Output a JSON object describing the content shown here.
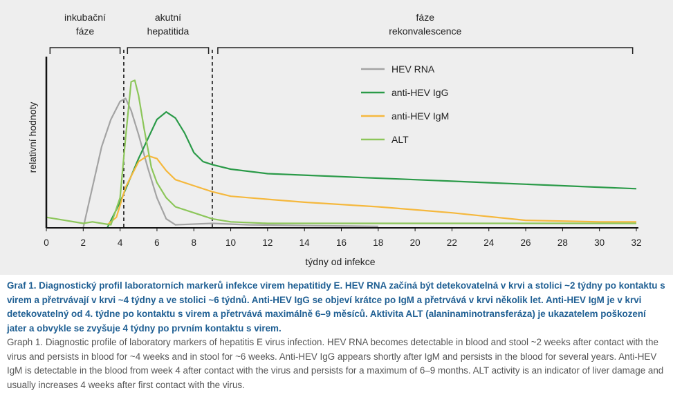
{
  "chart_data": {
    "type": "line",
    "xlabel": "týdny od infekce",
    "ylabel": "relativní hodnoty",
    "xlim": [
      0,
      32
    ],
    "ylim": [
      0,
      1
    ],
    "x_ticks": [
      0,
      2,
      4,
      6,
      8,
      10,
      12,
      14,
      16,
      18,
      20,
      22,
      24,
      26,
      28,
      30,
      32
    ],
    "phases": [
      {
        "label_lines": [
          "inkubační",
          "fáze"
        ],
        "start": 0.2,
        "end": 4.0
      },
      {
        "label_lines": [
          "akutní",
          "hepatitida"
        ],
        "start": 4.4,
        "end": 8.8
      },
      {
        "label_lines": [
          "fáze",
          "rekonvalescence"
        ],
        "start": 9.3,
        "end": 31.8
      }
    ],
    "phase_dividers": [
      4.2,
      9.0
    ],
    "legend_position": "upper-middle",
    "series": [
      {
        "name": "HEV RNA",
        "color": "#a3a3a3",
        "points": [
          [
            2.0,
            0.0
          ],
          [
            3.0,
            0.54
          ],
          [
            3.5,
            0.72
          ],
          [
            4.0,
            0.84
          ],
          [
            4.3,
            0.86
          ],
          [
            4.6,
            0.78
          ],
          [
            5.0,
            0.62
          ],
          [
            5.5,
            0.4
          ],
          [
            6.0,
            0.2
          ],
          [
            6.5,
            0.06
          ],
          [
            7.0,
            0.02
          ],
          [
            9.0,
            0.03
          ],
          [
            11.0,
            0.02
          ],
          [
            14.0,
            0.015
          ],
          [
            18.0,
            0.01
          ]
        ]
      },
      {
        "name": "anti-HEV IgG",
        "color": "#2a9a48",
        "points": [
          [
            3.3,
            0.0
          ],
          [
            4.0,
            0.17
          ],
          [
            5.0,
            0.46
          ],
          [
            6.0,
            0.72
          ],
          [
            6.5,
            0.77
          ],
          [
            7.0,
            0.73
          ],
          [
            7.5,
            0.63
          ],
          [
            8.0,
            0.5
          ],
          [
            8.5,
            0.44
          ],
          [
            9.0,
            0.42
          ],
          [
            10.0,
            0.39
          ],
          [
            12.0,
            0.36
          ],
          [
            16.0,
            0.34
          ],
          [
            20.0,
            0.32
          ],
          [
            24.0,
            0.3
          ],
          [
            28.0,
            0.28
          ],
          [
            32.0,
            0.26
          ]
        ]
      },
      {
        "name": "anti-HEV IgM",
        "color": "#f5b83d",
        "points": [
          [
            3.3,
            0.02
          ],
          [
            3.8,
            0.07
          ],
          [
            4.3,
            0.27
          ],
          [
            5.0,
            0.44
          ],
          [
            5.5,
            0.48
          ],
          [
            6.0,
            0.46
          ],
          [
            6.5,
            0.38
          ],
          [
            7.0,
            0.32
          ],
          [
            8.0,
            0.28
          ],
          [
            9.0,
            0.24
          ],
          [
            10.0,
            0.21
          ],
          [
            12.0,
            0.19
          ],
          [
            14.0,
            0.17
          ],
          [
            18.0,
            0.14
          ],
          [
            22.0,
            0.1
          ],
          [
            26.0,
            0.05
          ],
          [
            30.0,
            0.04
          ],
          [
            32.0,
            0.04
          ]
        ]
      },
      {
        "name": "ALT",
        "color": "#8cc65a",
        "points": [
          [
            0.0,
            0.07
          ],
          [
            1.0,
            0.05
          ],
          [
            2.0,
            0.03
          ],
          [
            2.5,
            0.04
          ],
          [
            3.0,
            0.03
          ],
          [
            3.5,
            0.02
          ],
          [
            4.0,
            0.2
          ],
          [
            4.3,
            0.6
          ],
          [
            4.6,
            0.97
          ],
          [
            4.8,
            0.98
          ],
          [
            5.0,
            0.88
          ],
          [
            5.3,
            0.66
          ],
          [
            5.7,
            0.4
          ],
          [
            6.0,
            0.3
          ],
          [
            6.5,
            0.2
          ],
          [
            7.0,
            0.14
          ],
          [
            8.0,
            0.1
          ],
          [
            9.0,
            0.06
          ],
          [
            10.0,
            0.04
          ],
          [
            12.0,
            0.03
          ],
          [
            16.0,
            0.03
          ],
          [
            20.0,
            0.03
          ],
          [
            26.0,
            0.03
          ],
          [
            32.0,
            0.03
          ]
        ]
      }
    ]
  },
  "caption": {
    "czech": "Graf 1. Diagnostický profil laboratorních markerů infekce virem hepatitidy E. HEV RNA začíná být detekovatelná v krvi a stolici ~2 týdny po kontaktu s virem a přetrvávají v krvi ~4 týdny a ve stolici ~6 týdnů. Anti-HEV IgG se objeví krátce po IgM a přetrvává v krvi několik let. Anti-HEV IgM je v krvi detekovatelný od 4. týdne po kontaktu s virem a přetrvává maximálně 6–9 měsíců. Aktivita ALT (alaninaminotransferáza) je ukazatelem poškození jater a obvykle se zvyšuje 4 týdny po prvním kontaktu s virem.",
    "english": "Graph 1. Diagnostic profile of laboratory markers of hepatitis E virus infection. HEV RNA becomes detectable in blood and stool ~2 weeks after contact with the virus and persists in blood for ~4 weeks and in stool for ~6 weeks. Anti-HEV IgG appears shortly after IgM and persists in the blood for several years. Anti-HEV IgM is detectable in the blood from week 4 after contact with the virus and persists for a maximum of 6–9 months. ALT activity is an indicator of liver damage and usually increases 4 weeks after first contact with the virus."
  }
}
